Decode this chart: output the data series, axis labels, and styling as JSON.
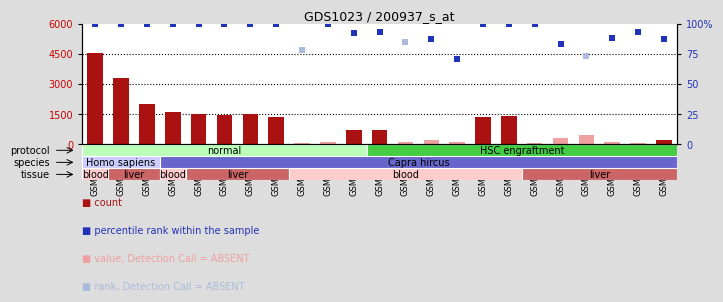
{
  "title": "GDS1023 / 200937_s_at",
  "samples": [
    "GSM31059",
    "GSM31063",
    "GSM31060",
    "GSM31061",
    "GSM31064",
    "GSM31067",
    "GSM31069",
    "GSM31072",
    "GSM31070",
    "GSM31071",
    "GSM31073",
    "GSM31075",
    "GSM31077",
    "GSM31078",
    "GSM31079",
    "GSM31085",
    "GSM31086",
    "GSM31091",
    "GSM31080",
    "GSM31082",
    "GSM31087",
    "GSM31089",
    "GSM31090"
  ],
  "bar_values": [
    4550,
    3300,
    2000,
    1600,
    1520,
    1450,
    1500,
    1350,
    80,
    120,
    700,
    700,
    120,
    200,
    120,
    1350,
    1400,
    80,
    300,
    450,
    120,
    80,
    200
  ],
  "bar_absent": [
    false,
    false,
    false,
    false,
    false,
    false,
    false,
    false,
    true,
    true,
    false,
    false,
    true,
    true,
    true,
    false,
    false,
    true,
    true,
    true,
    true,
    true,
    false
  ],
  "scatter_pct": [
    100,
    100,
    100,
    100,
    100,
    100,
    100,
    100,
    78,
    100,
    92,
    93,
    85,
    87,
    71,
    100,
    100,
    100,
    83,
    73,
    88,
    93,
    87
  ],
  "scatter_absent": [
    false,
    false,
    false,
    false,
    false,
    false,
    false,
    false,
    true,
    false,
    false,
    false,
    true,
    false,
    false,
    false,
    false,
    false,
    false,
    true,
    false,
    false,
    false
  ],
  "ylim_left": [
    0,
    6000
  ],
  "ylim_right": [
    0,
    100
  ],
  "yticks_left": [
    0,
    1500,
    3000,
    4500,
    6000
  ],
  "yticks_right": [
    0,
    25,
    50,
    75,
    100
  ],
  "bar_color_present": "#aa1111",
  "bar_color_absent": "#f0a0a0",
  "scatter_color_present": "#2233bb",
  "scatter_color_absent": "#aabbdd",
  "protocol_groups": [
    {
      "label": "normal",
      "start": 0,
      "end": 11,
      "color": "#bbffbb"
    },
    {
      "label": "HSC engraftment",
      "start": 11,
      "end": 23,
      "color": "#44cc44"
    }
  ],
  "species_groups": [
    {
      "label": "Homo sapiens",
      "start": 0,
      "end": 3,
      "color": "#ccccff"
    },
    {
      "label": "Capra hircus",
      "start": 3,
      "end": 23,
      "color": "#6666cc"
    }
  ],
  "tissue_groups": [
    {
      "label": "blood",
      "start": 0,
      "end": 1,
      "color": "#ffcccc"
    },
    {
      "label": "liver",
      "start": 1,
      "end": 3,
      "color": "#cc6666"
    },
    {
      "label": "blood",
      "start": 3,
      "end": 4,
      "color": "#ffcccc"
    },
    {
      "label": "liver",
      "start": 4,
      "end": 8,
      "color": "#cc6666"
    },
    {
      "label": "blood",
      "start": 8,
      "end": 17,
      "color": "#ffcccc"
    },
    {
      "label": "liver",
      "start": 17,
      "end": 23,
      "color": "#cc6666"
    }
  ],
  "legend_items": [
    {
      "label": "count",
      "color": "#aa1111"
    },
    {
      "label": "percentile rank within the sample",
      "color": "#2233bb"
    },
    {
      "label": "value, Detection Call = ABSENT",
      "color": "#f0a0a0"
    },
    {
      "label": "rank, Detection Call = ABSENT",
      "color": "#aabbdd"
    }
  ],
  "background_color": "#dddddd",
  "plot_bg_color": "#ffffff"
}
